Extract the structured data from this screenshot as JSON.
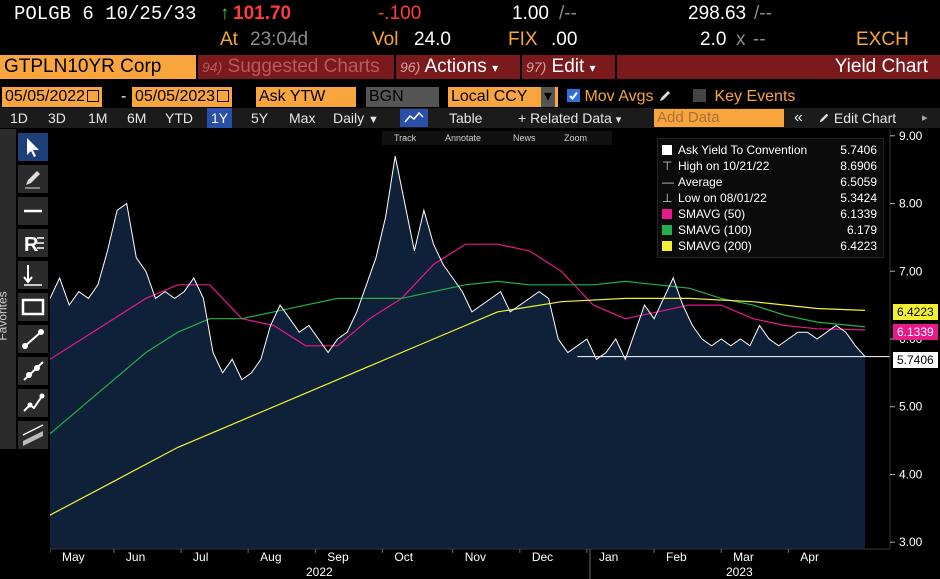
{
  "quote": {
    "security": "POLGB 6 10/25/33",
    "up_arrow": "↑",
    "price": "101.70",
    "change": "-.100",
    "size": "1.00",
    "size_sep": "/--",
    "yield": "298.63",
    "yield_sep": "/--",
    "time_label": "At",
    "time": "23:04d",
    "vol_label": "Vol",
    "vol": "24.0",
    "fix_label": "FIX",
    "fix": ".00",
    "bid_ask": "2.0",
    "x_label": "x",
    "ask_sep": "--",
    "exchange": "EXCH"
  },
  "titlebar": {
    "ticker": "GTPLN10YR Corp",
    "suggested_num": "94)",
    "suggested": "Suggested Charts",
    "actions_num": "96)",
    "actions": "Actions",
    "edit_num": "97)",
    "edit": "Edit",
    "caret": "▾",
    "chart_title": "Yield Chart"
  },
  "controls": {
    "start_date": "05/05/2022",
    "date_sep": "-",
    "end_date": "05/05/2023",
    "field": "Ask YTW",
    "source": "BGN",
    "currency": "Local CCY",
    "currency_caret": "▾",
    "mov_avgs": "Mov Avgs",
    "key_events": "Key Events"
  },
  "toolbar": {
    "periods": [
      "1D",
      "3D",
      "1M",
      "6M",
      "YTD",
      "1Y",
      "5Y",
      "Max"
    ],
    "selected_period": "1Y",
    "frequency": "Daily",
    "frequency_caret": "▼",
    "table": "Table",
    "related_data": "+ Related Data",
    "related_caret": "▾",
    "add_data_placeholder": "Add Data",
    "collapse": "«",
    "edit_chart": "Edit Chart"
  },
  "mini_tools": {
    "track": "Track",
    "annotate": "Annotate",
    "news": "News",
    "zoom": "Zoom"
  },
  "palette": {
    "favorites": "Favorites",
    "tools": [
      "pointer-icon",
      "pencil-icon",
      "horizontal-line-icon",
      "text-r-icon",
      "vertical-arrow-icon",
      "rectangle-icon",
      "line-segment-icon",
      "ray-icon",
      "multi-point-icon",
      "channel-icon",
      "parallel-icon"
    ]
  },
  "legend": {
    "rows": [
      {
        "name": "Ask Yield To Convention",
        "value": "5.7406",
        "mark": "square",
        "color": "#ffffff"
      },
      {
        "name": "High on 10/21/22",
        "value": "8.6906",
        "mark": "high",
        "color": "#cfcfcf"
      },
      {
        "name": "Average",
        "value": "6.5059",
        "mark": "avg",
        "color": "#cfcfcf"
      },
      {
        "name": "Low on 08/01/22",
        "value": "5.3424",
        "mark": "low",
        "color": "#cfcfcf"
      },
      {
        "name": "SMAVG (50)",
        "value": "6.1339",
        "mark": "square",
        "color": "#e8198b"
      },
      {
        "name": "SMAVG (100)",
        "value": "6.179",
        "mark": "square",
        "color": "#23b04a"
      },
      {
        "name": "SMAVG (200)",
        "value": "6.4223",
        "mark": "square",
        "color": "#f2f233"
      }
    ]
  },
  "value_tags": {
    "sma200": "6.4223",
    "sma50": "6.1339",
    "last": "5.7406"
  },
  "chart_data": {
    "type": "area",
    "ylim": [
      2.9,
      9.1
    ],
    "y_ticks": [
      "3.00",
      "4.00",
      "5.00",
      "6.00",
      "7.00",
      "8.00",
      "9.00"
    ],
    "x_month_labels": [
      "May",
      "Jun",
      "Jul",
      "Aug",
      "Sep",
      "Oct",
      "Nov",
      "Dec",
      "Jan",
      "Feb",
      "Mar",
      "Apr"
    ],
    "x_year_labels": [
      "2022",
      "2023"
    ],
    "grid": false,
    "colors": {
      "price_line": "#ffffff",
      "price_fill": "#0e2138",
      "sma50": "#e8198b",
      "sma100": "#23b04a",
      "sma200": "#f2f233"
    },
    "series": [
      {
        "name": "Ask Yield To Convention",
        "x": [
          0,
          3,
          6,
          9,
          12,
          15,
          18,
          21,
          24,
          27,
          30,
          33,
          36,
          39,
          42,
          45,
          48,
          51,
          54,
          57,
          60,
          63,
          66,
          69,
          72,
          75,
          78,
          81,
          84,
          87,
          90,
          93,
          96,
          99,
          102,
          105,
          108,
          111,
          114,
          117,
          120,
          123,
          126,
          129,
          132,
          135,
          138,
          141,
          144,
          147,
          150,
          153,
          156,
          159,
          162,
          165,
          168,
          171,
          174,
          177,
          180,
          183,
          186,
          189,
          192,
          195,
          198,
          201,
          204,
          207,
          210,
          213,
          216,
          219,
          222,
          225,
          228,
          231,
          234,
          237,
          240,
          243,
          246,
          249,
          252,
          255
        ],
        "values": [
          6.6,
          6.9,
          6.5,
          6.7,
          6.6,
          6.8,
          7.3,
          7.9,
          8.0,
          7.2,
          7.0,
          6.6,
          6.7,
          6.6,
          6.7,
          6.9,
          6.6,
          5.8,
          5.5,
          5.7,
          5.4,
          5.5,
          5.7,
          6.2,
          6.5,
          6.3,
          6.1,
          6.2,
          6.0,
          5.8,
          6.0,
          6.1,
          6.4,
          6.8,
          7.2,
          7.8,
          8.7,
          8.0,
          7.3,
          7.9,
          7.4,
          7.1,
          6.9,
          6.7,
          6.4,
          6.5,
          6.6,
          6.7,
          6.4,
          6.5,
          6.6,
          6.7,
          6.6,
          6.0,
          5.8,
          5.9,
          6.0,
          5.7,
          5.8,
          6.0,
          5.7,
          6.1,
          6.5,
          6.3,
          6.6,
          6.9,
          6.5,
          6.2,
          6.0,
          5.9,
          6.0,
          5.9,
          6.0,
          5.9,
          6.2,
          6.0,
          5.9,
          6.0,
          6.1,
          6.1,
          6.0,
          6.1,
          6.2,
          6.1,
          5.9,
          5.74
        ]
      },
      {
        "name": "SMAVG (50)",
        "x": [
          0,
          10,
          20,
          30,
          40,
          50,
          60,
          70,
          80,
          90,
          100,
          110,
          120,
          130,
          140,
          150,
          160,
          170,
          180,
          190,
          200,
          210,
          220,
          230,
          240,
          255
        ],
        "values": [
          5.7,
          6.0,
          6.3,
          6.6,
          6.8,
          6.8,
          6.3,
          6.2,
          5.9,
          5.9,
          6.3,
          6.6,
          7.1,
          7.4,
          7.4,
          7.3,
          7.0,
          6.5,
          6.3,
          6.4,
          6.5,
          6.5,
          6.3,
          6.2,
          6.15,
          6.1339
        ]
      },
      {
        "name": "SMAVG (100)",
        "x": [
          0,
          10,
          20,
          30,
          40,
          50,
          60,
          70,
          80,
          90,
          100,
          110,
          120,
          130,
          140,
          150,
          160,
          170,
          180,
          190,
          200,
          210,
          220,
          230,
          240,
          255
        ],
        "values": [
          4.6,
          5.0,
          5.4,
          5.8,
          6.1,
          6.3,
          6.3,
          6.4,
          6.5,
          6.6,
          6.6,
          6.6,
          6.7,
          6.8,
          6.85,
          6.8,
          6.8,
          6.8,
          6.85,
          6.8,
          6.75,
          6.6,
          6.5,
          6.35,
          6.25,
          6.179
        ]
      },
      {
        "name": "SMAVG (200)",
        "x": [
          0,
          20,
          40,
          60,
          80,
          100,
          120,
          140,
          160,
          180,
          200,
          220,
          240,
          255
        ],
        "values": [
          3.4,
          3.9,
          4.4,
          4.8,
          5.2,
          5.6,
          6.0,
          6.4,
          6.55,
          6.6,
          6.6,
          6.55,
          6.45,
          6.4223
        ]
      }
    ]
  }
}
